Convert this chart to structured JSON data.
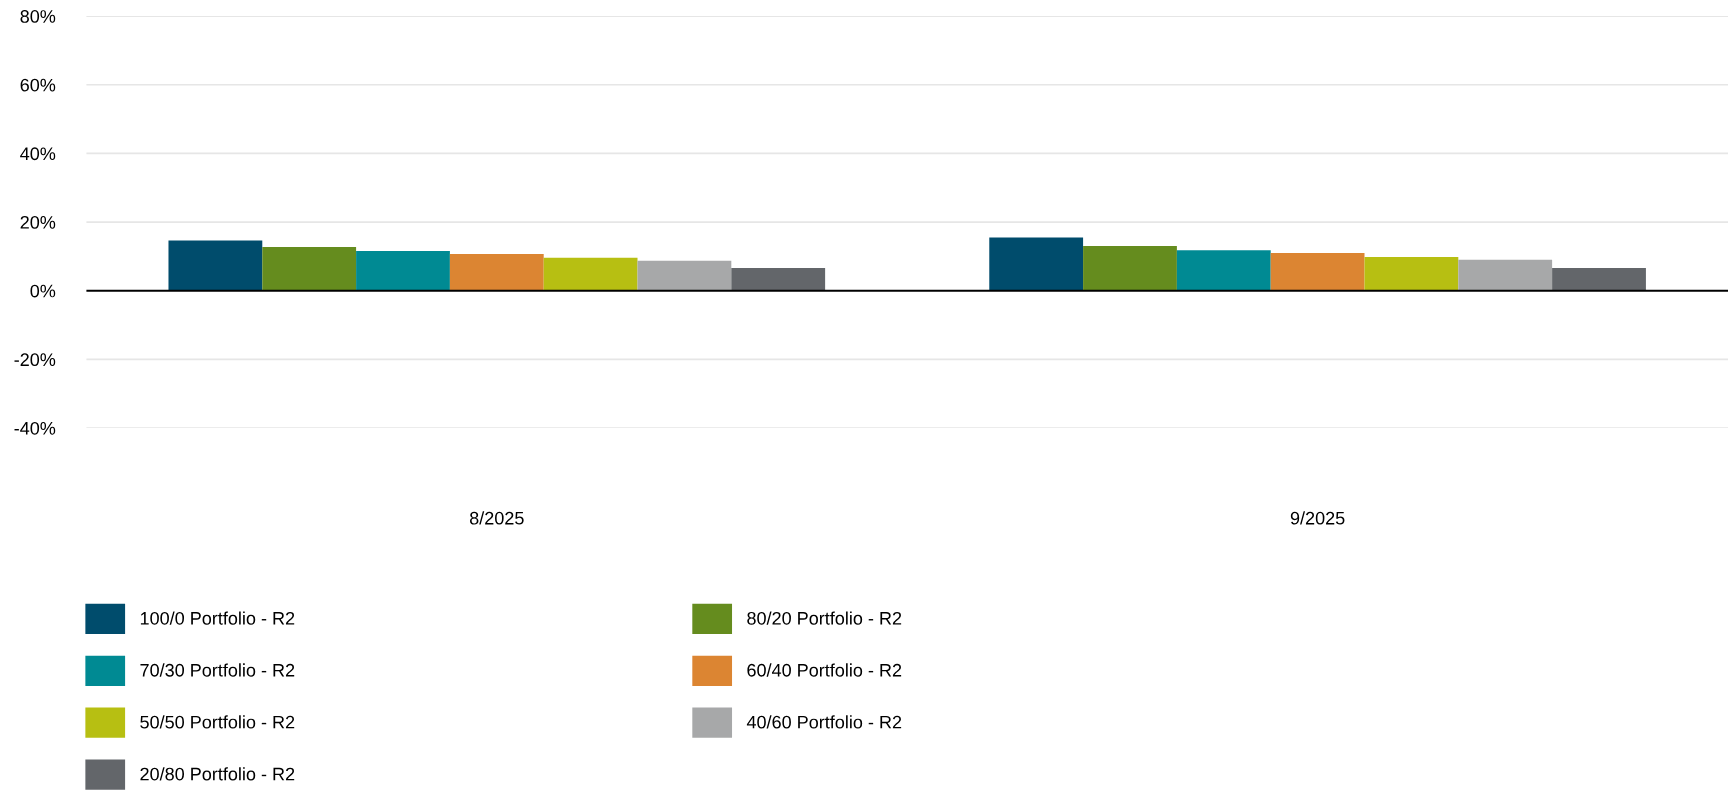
{
  "chart_data": {
    "type": "bar",
    "categories": [
      "8/2025",
      "9/2025"
    ],
    "series": [
      {
        "name": "100/0 Portfolio - R2",
        "color": "#004c6c",
        "values": [
          14.6,
          15.5
        ]
      },
      {
        "name": "80/20 Portfolio - R2",
        "color": "#658c1e",
        "values": [
          12.7,
          13.0
        ]
      },
      {
        "name": "70/30 Portfolio - R2",
        "color": "#008a93",
        "values": [
          11.6,
          11.8
        ]
      },
      {
        "name": "60/40 Portfolio - R2",
        "color": "#dc8532",
        "values": [
          10.7,
          11.0
        ]
      },
      {
        "name": "50/50 Portfolio - R2",
        "color": "#b7bf12",
        "values": [
          9.6,
          9.8
        ]
      },
      {
        "name": "40/60 Portfolio - R2",
        "color": "#a7a8a9",
        "values": [
          8.7,
          9.0
        ]
      },
      {
        "name": "20/80 Portfolio - R2",
        "color": "#63666a",
        "values": [
          6.6,
          6.6
        ]
      }
    ],
    "ylim": [
      -40,
      80
    ],
    "yticks": [
      {
        "value": -40,
        "label": "-40%"
      },
      {
        "value": -20,
        "label": "-20%"
      },
      {
        "value": 0,
        "label": "0%"
      },
      {
        "value": 20,
        "label": "20%"
      },
      {
        "value": 40,
        "label": "40%"
      },
      {
        "value": 60,
        "label": "60%"
      },
      {
        "value": 80,
        "label": "80%"
      }
    ],
    "grid": "y",
    "legend": "bottom"
  }
}
